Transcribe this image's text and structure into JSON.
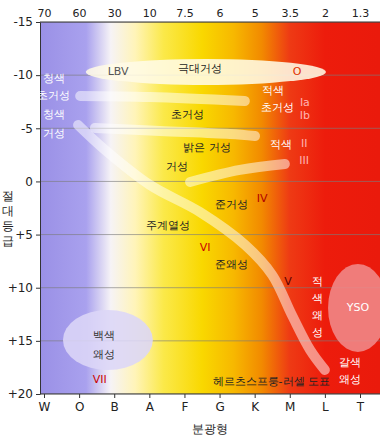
{
  "chart_data": {
    "type": "hrdiagram",
    "title": "헤르츠스프룽-러셀 도표",
    "x_label": "분광형",
    "y_label": "절대등급",
    "categories": [
      "W",
      "O",
      "B",
      "A",
      "F",
      "G",
      "K",
      "M",
      "L",
      "T"
    ],
    "temperatures": [
      70,
      60,
      30,
      10,
      7.5,
      6,
      5,
      3.5,
      2,
      1.3
    ],
    "ylim": [
      -15,
      20
    ],
    "yticks": [
      -15,
      -10,
      -5,
      0,
      {
        "value": 5,
        "label": "+5"
      },
      {
        "value": 10,
        "label": "+10"
      },
      {
        "value": 15,
        "label": "+15"
      },
      {
        "value": 20,
        "label": "+20"
      }
    ],
    "grid": true,
    "bands": [
      {
        "color": "#ffffff",
        "x": [
          0.97,
          1.74,
          3.02,
          4.44,
          5.73,
          6.5,
          7.06,
          7.58,
          8.0
        ],
        "y": [
          -5.31,
          -2.96,
          0.34,
          2.88,
          5.98,
          8.8,
          12.57,
          15.86,
          17.74
        ]
      },
      {
        "color": "#ffffff",
        "x": [
          4.16,
          5.58,
          6.86
        ],
        "y": [
          0.05,
          -1.08,
          -1.64
        ]
      },
      {
        "color": "#ffffff",
        "x": [
          1.45,
          3.3,
          5.3,
          6.01
        ],
        "y": [
          -5.03,
          -4.75,
          -4.46,
          -4.27
        ]
      },
      {
        "color": "#ffffff",
        "x": [
          1.03,
          3.02,
          5.72
        ],
        "y": [
          -8.04,
          -7.94,
          -7.57
        ]
      }
    ],
    "regions": [
      {
        "color": "#fffbe6",
        "cx": 4.61,
        "cy": -10.3,
        "rx": 3.42,
        "ry": 1.22
      },
      {
        "color": "#dcd6f7",
        "cx": 1.82,
        "cy": 14.92,
        "rx": 1.28,
        "ry": 2.82
      },
      {
        "color": "#f08a8a",
        "cx": 8.94,
        "cy": 11.9,
        "rx": 0.85,
        "ry": 4.14
      }
    ],
    "annotations": [
      {
        "text": "LBV",
        "x": 2.11,
        "y": -10.3,
        "color": "#555555"
      },
      {
        "text": "극대거성",
        "x": 4.44,
        "y": -10.67,
        "color": "#222222"
      },
      {
        "text": "O",
        "x": 7.21,
        "y": -10.3,
        "color": "#e03000"
      },
      {
        "text": "청색",
        "x": 0.28,
        "y": -9.64,
        "color": "#ffffff"
      },
      {
        "text": "초거성",
        "x": 0.28,
        "y": -8.04,
        "color": "#ffffff"
      },
      {
        "text": "청색",
        "x": 0.28,
        "y": -6.34,
        "color": "#ffffff"
      },
      {
        "text": "거성",
        "x": 0.28,
        "y": -4.5,
        "color": "#ffffff"
      },
      {
        "text": "초거성",
        "x": 4.1,
        "y": -6.34,
        "color": "#222222"
      },
      {
        "text": "적색",
        "x": 6.52,
        "y": -8.6,
        "color": "#ffffff"
      },
      {
        "text": "초거성",
        "x": 6.66,
        "y": -7.0,
        "color": "#ffffff"
      },
      {
        "text": "Ia",
        "x": 7.43,
        "y": -7.47,
        "color": "#ffb3b3"
      },
      {
        "text": "Ib",
        "x": 7.43,
        "y": -6.25,
        "color": "#ffb3b3"
      },
      {
        "text": "밝은 거성",
        "x": 4.64,
        "y": -3.15,
        "color": "#222222"
      },
      {
        "text": "적색",
        "x": 6.75,
        "y": -3.52,
        "color": "#ffffff"
      },
      {
        "text": "II",
        "x": 7.41,
        "y": -3.6,
        "color": "#ffb3b3"
      },
      {
        "text": "거성",
        "x": 3.79,
        "y": -1.36,
        "color": "#222222"
      },
      {
        "text": "III",
        "x": 7.41,
        "y": -2.0,
        "color": "#ffb3b3"
      },
      {
        "text": "준거성",
        "x": 5.35,
        "y": 2.2,
        "color": "#222222"
      },
      {
        "text": "IV",
        "x": 6.21,
        "y": 1.56,
        "color": "#b00000"
      },
      {
        "text": "주계열성",
        "x": 3.53,
        "y": 4.1,
        "color": "#222222"
      },
      {
        "text": "VI",
        "x": 4.59,
        "y": 6.17,
        "color": "#cc0000"
      },
      {
        "text": "준왜성",
        "x": 5.35,
        "y": 7.77,
        "color": "#222222"
      },
      {
        "text": "V",
        "x": 6.95,
        "y": 9.46,
        "color": "#5a0000"
      },
      {
        "text": "적색왜성",
        "x": 7.8,
        "y": 9.46,
        "color": "#ffffff",
        "orientation": "vertical"
      },
      {
        "text": "YSO",
        "x": 8.94,
        "y": 11.9,
        "color": "#ffffff"
      },
      {
        "text": "갈색",
        "x": 8.72,
        "y": 17.0,
        "color": "#ffffff"
      },
      {
        "text": "왜성",
        "x": 8.72,
        "y": 18.6,
        "color": "#ffffff"
      },
      {
        "text": "백색",
        "x": 1.71,
        "y": 14.45,
        "color": "#333333"
      },
      {
        "text": "왜성",
        "x": 1.71,
        "y": 16.24,
        "color": "#333333"
      },
      {
        "text": "VII",
        "x": 1.59,
        "y": 18.68,
        "color": "#cc0000"
      }
    ]
  }
}
